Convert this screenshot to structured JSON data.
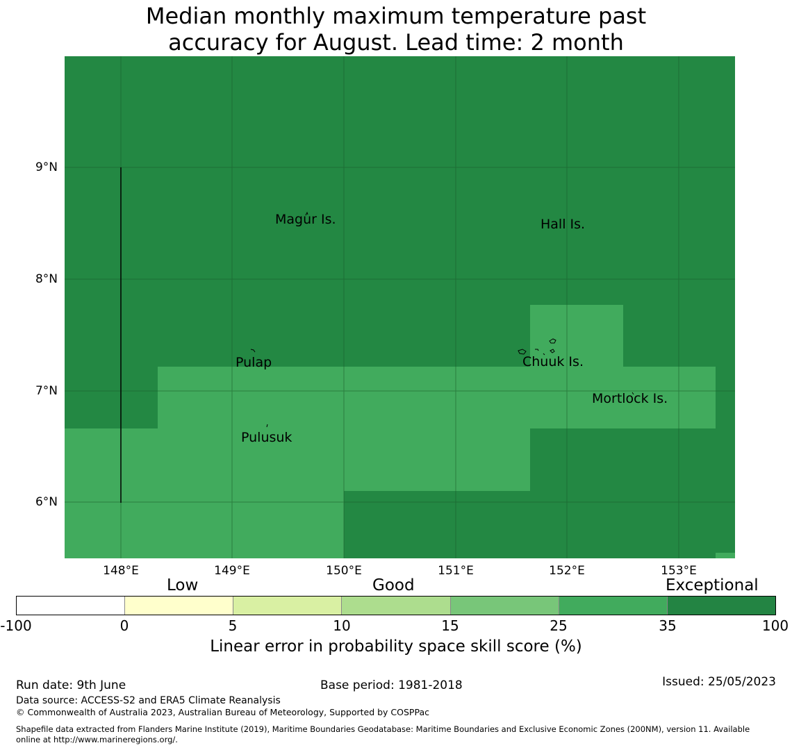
{
  "title_line1": "Median monthly maximum temperature past",
  "title_line2": "accuracy for August. Lead time: 2 month",
  "map": {
    "lon_range": [
      147.5,
      153.5
    ],
    "lat_range": [
      5.5,
      10.0
    ],
    "lat_labels": [
      "9°N",
      "8°N",
      "7°N",
      "6°N"
    ],
    "lon_labels": [
      "148°E",
      "149°E",
      "150°E",
      "151°E",
      "152°E",
      "153°E"
    ],
    "places": [
      "Magur Is.",
      "Hall Is.",
      "Pulap",
      "Chuuk Is.",
      "Mortlock Is.",
      "Pulusuk"
    ],
    "colors": {
      "exceptional": "#238843",
      "very_good": "#41ab5d",
      "grid": "#1a5a2a"
    }
  },
  "legend": {
    "categories": [
      "Low",
      "Good",
      "Exceptional"
    ],
    "ticks": [
      "-100",
      "0",
      "5",
      "10",
      "15",
      "25",
      "35",
      "100"
    ],
    "colors": [
      "#ffffff",
      "#ffffcc",
      "#d9f0a3",
      "#addd8e",
      "#78c679",
      "#41ab5d",
      "#238443"
    ],
    "label": "Linear error in probability space skill score (%)"
  },
  "footer": {
    "run_date": "Run date: 9th June",
    "base_period": "Base period: 1981-2018",
    "issued": "Issued: 25/05/2023",
    "data_source": "Data source: ACCESS-S2 and ERA5 Climate Reanalysis",
    "copyright": "© Commonwealth of Australia 2023, Australian Bureau of Meteorology, Supported by COSPPac",
    "shapefile_line1": "Shapefile data extracted from Flanders Marine Institute (2019), Maritime Boundaries Geodatabase: Maritime Boundaries and Exclusive Economic Zones (200NM), version 11. Available",
    "shapefile_line2": "online at http://www.marineregions.org/."
  }
}
